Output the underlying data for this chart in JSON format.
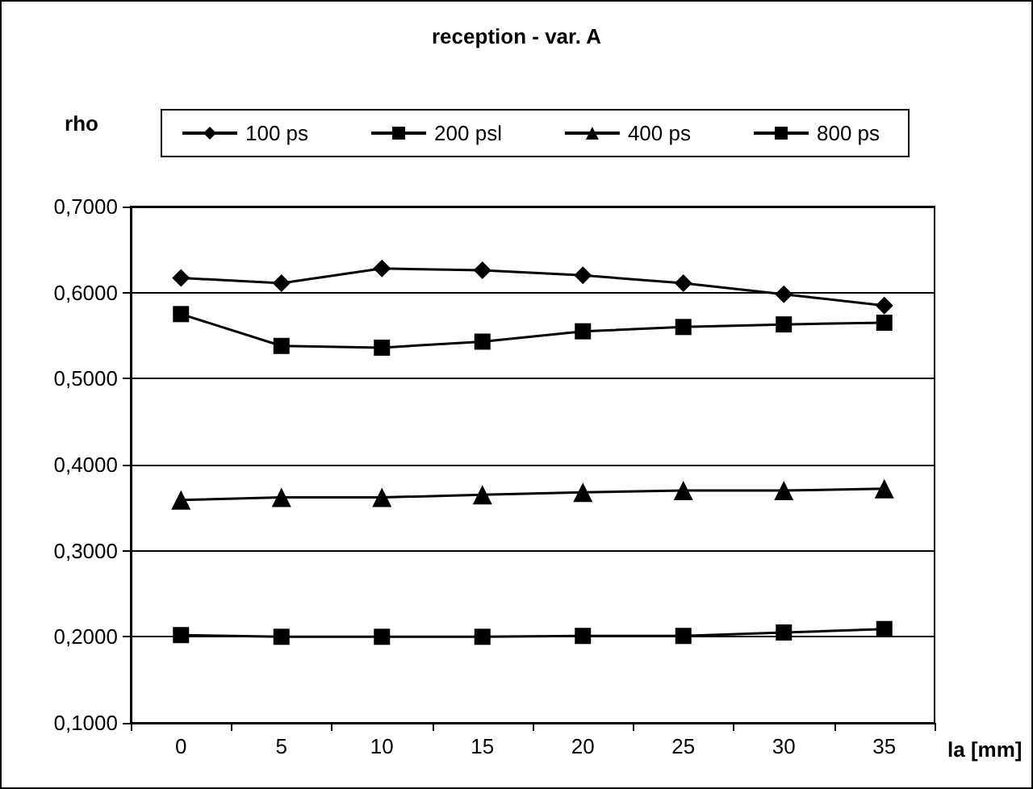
{
  "chart_data": {
    "type": "line",
    "title": "reception - var. A",
    "xlabel": "la [mm]",
    "ylabel": "rho",
    "categories": [
      "0",
      "5",
      "10",
      "15",
      "20",
      "25",
      "30",
      "35"
    ],
    "series": [
      {
        "name": "100 ps",
        "color": "#000000",
        "marker": "diamond",
        "values": [
          0.617,
          0.611,
          0.628,
          0.626,
          0.62,
          0.611,
          0.598,
          0.585
        ]
      },
      {
        "name": "200 psl",
        "color": "#000000",
        "marker": "square",
        "values": [
          0.575,
          0.538,
          0.536,
          0.543,
          0.555,
          0.56,
          0.563,
          0.565
        ]
      },
      {
        "name": "400 ps",
        "color": "#000000",
        "marker": "triangle",
        "values": [
          0.359,
          0.362,
          0.362,
          0.365,
          0.368,
          0.37,
          0.37,
          0.372
        ]
      },
      {
        "name": "800 ps",
        "color": "#000000",
        "marker": "square",
        "values": [
          0.202,
          0.2,
          0.2,
          0.2,
          0.201,
          0.201,
          0.205,
          0.209
        ]
      }
    ],
    "ylim": [
      0.1,
      0.7
    ],
    "yticks": [
      {
        "value": 0.1,
        "label": "0,1000"
      },
      {
        "value": 0.2,
        "label": "0,2000"
      },
      {
        "value": 0.3,
        "label": "0,3000"
      },
      {
        "value": 0.4,
        "label": "0,4000"
      },
      {
        "value": 0.5,
        "label": "0,5000"
      },
      {
        "value": 0.6,
        "label": "0,6000"
      },
      {
        "value": 0.7,
        "label": "0,7000"
      }
    ],
    "grid": "y",
    "legend": "top",
    "line_style": "solid"
  }
}
